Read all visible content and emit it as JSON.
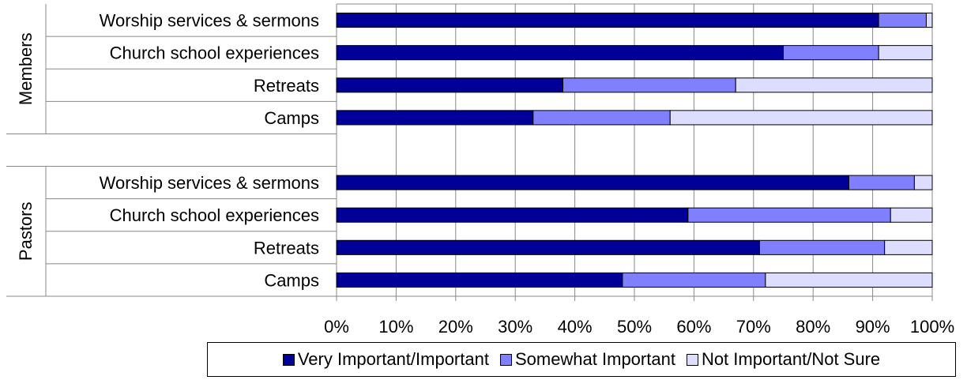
{
  "chart_data": {
    "type": "bar",
    "orientation": "horizontal",
    "stacked": true,
    "percent": true,
    "groups": [
      {
        "name": "Members",
        "categories": [
          "Worship services & sermons",
          "Church school experiences",
          "Retreats",
          "Camps"
        ],
        "series_values": {
          "Very Important/Important": [
            91,
            75,
            38,
            33
          ],
          "Somewhat Important": [
            8,
            16,
            29,
            23
          ],
          "Not Important/Not Sure": [
            1,
            9,
            33,
            44
          ]
        }
      },
      {
        "name": "Pastors",
        "categories": [
          "Worship services & sermons",
          "Church school experiences",
          "Retreats",
          "Camps"
        ],
        "series_values": {
          "Very Important/Important": [
            86,
            59,
            71,
            48
          ],
          "Somewhat Important": [
            11,
            34,
            21,
            24
          ],
          "Not Important/Not Sure": [
            3,
            7,
            8,
            28
          ]
        }
      }
    ],
    "series": [
      {
        "name": "Very Important/Important",
        "color": "#000099"
      },
      {
        "name": "Somewhat Important",
        "color": "#8080ff"
      },
      {
        "name": "Not Important/Not Sure",
        "color": "#ddddff"
      }
    ],
    "xlim": [
      0,
      100
    ],
    "xticks": [
      "0%",
      "10%",
      "20%",
      "30%",
      "40%",
      "50%",
      "60%",
      "70%",
      "80%",
      "90%",
      "100%"
    ],
    "grid": true,
    "legend_position": "bottom"
  }
}
